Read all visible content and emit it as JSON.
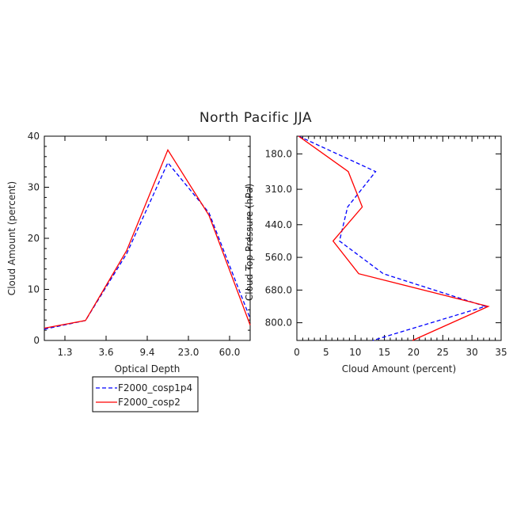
{
  "title": "North Pacific JJA",
  "legend": {
    "placement": "below-left",
    "entries": [
      {
        "name": "F2000_cosp1p4",
        "color": "#0000ff",
        "dash": "dashed"
      },
      {
        "name": "F2000_cosp2",
        "color": "#ff0000",
        "dash": "solid"
      }
    ]
  },
  "chart_data": [
    {
      "type": "line",
      "xlabel": "Optical Depth",
      "ylabel": "Cloud Amount (percent)",
      "x_ticks": [
        "1.3",
        "3.6",
        "9.4",
        "23.0",
        "60.0"
      ],
      "x_tick_positions": [
        0.5,
        1.5,
        2.5,
        3.5,
        4.5
      ],
      "xlim": [
        0,
        5
      ],
      "ylim": [
        0,
        40
      ],
      "y_ticks": [
        0,
        10,
        20,
        30,
        40
      ],
      "series": [
        {
          "name": "F2000_cosp1p4",
          "color": "#0000ff",
          "x": [
            0,
            1,
            2,
            3,
            4,
            5
          ],
          "y": [
            2.2,
            3.9,
            17.0,
            34.8,
            25.0,
            4.3
          ]
        },
        {
          "name": "F2000_cosp2",
          "color": "#ff0000",
          "x": [
            0,
            1,
            2,
            3,
            4,
            5
          ],
          "y": [
            2.4,
            3.9,
            17.6,
            37.3,
            24.5,
            3.0
          ]
        }
      ]
    },
    {
      "type": "line",
      "xlabel": "Cloud Amount (percent)",
      "ylabel": "Cloud Top Pressure (hPa)",
      "xlim": [
        0,
        35
      ],
      "x_ticks": [
        0,
        5,
        10,
        15,
        20,
        25,
        30,
        35
      ],
      "ylim": [
        115,
        865
      ],
      "y_inverted": true,
      "y_ticks": [
        "180.0",
        "310.0",
        "440.0",
        "560.0",
        "680.0",
        "800.0"
      ],
      "y_tick_values": [
        180,
        310,
        440,
        560,
        680,
        800
      ],
      "series": [
        {
          "name": "F2000_cosp1p4",
          "color": "#0000ff",
          "x": [
            0.3,
            13.5,
            8.7,
            7.3,
            14.8,
            32.3,
            13.0
          ],
          "y": [
            115,
            245,
            375,
            500,
            620,
            740,
            865
          ]
        },
        {
          "name": "F2000_cosp2",
          "color": "#ff0000",
          "x": [
            0.3,
            8.8,
            11.2,
            6.2,
            10.6,
            32.8,
            19.8
          ],
          "y": [
            115,
            245,
            375,
            500,
            620,
            740,
            865
          ]
        }
      ]
    }
  ]
}
